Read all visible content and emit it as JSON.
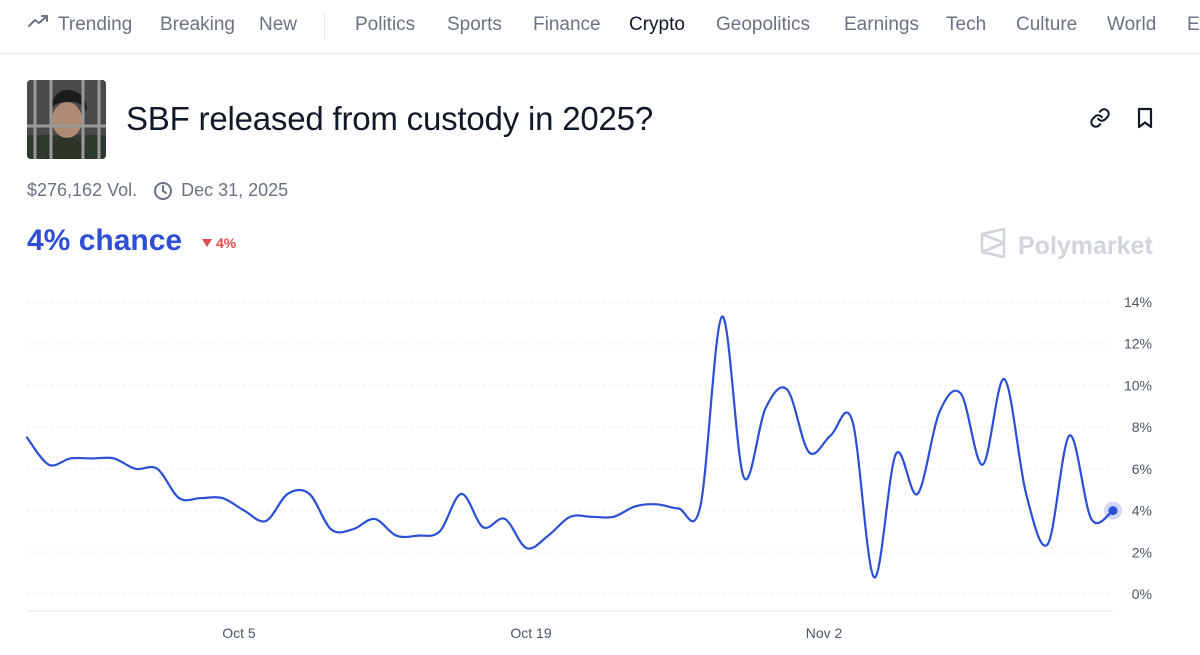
{
  "nav": {
    "primary": [
      {
        "label": "Trending",
        "icon": "trending-up-icon"
      },
      {
        "label": "Breaking"
      },
      {
        "label": "New"
      }
    ],
    "categories": [
      "Politics",
      "Sports",
      "Finance",
      "Crypto",
      "Geopolitics",
      "Earnings",
      "Tech",
      "Culture",
      "World",
      "E"
    ],
    "active": "Crypto"
  },
  "market": {
    "title": "SBF released from custody in 2025?",
    "volume": "$276,162 Vol.",
    "end_date": "Dec 31, 2025",
    "chance": "4% chance",
    "delta": "4%",
    "brand": "Polymarket",
    "icons": [
      "link-icon",
      "bookmark-icon",
      "clock-icon",
      "down-triangle-icon",
      "polymarket-logo-icon"
    ]
  },
  "colors": {
    "accent": "#2f4ed6",
    "line": "#2b4fd6",
    "negative": "#e5484d",
    "muted": "#6b7280",
    "grid": "#e5e7eb"
  },
  "chart_data": {
    "type": "line",
    "ylim": [
      0,
      14
    ],
    "y_ticks": [
      "14%",
      "12%",
      "10%",
      "8%",
      "6%",
      "4%",
      "2%",
      "0%"
    ],
    "x_ticks": [
      "Oct 5",
      "Oct 19",
      "Nov 2"
    ],
    "grid": "dotted horizontal",
    "series": [
      {
        "x": [
          0,
          1,
          2,
          3,
          4,
          5,
          6,
          7,
          8,
          9,
          10,
          11,
          12,
          13,
          14,
          15,
          16,
          17,
          18,
          19,
          20,
          21,
          22,
          23,
          24,
          25,
          26,
          27,
          28,
          29,
          30,
          31,
          32,
          33,
          34,
          35,
          36,
          37,
          38,
          39,
          40,
          41,
          42,
          43,
          44,
          45,
          46,
          47,
          48,
          49,
          50
        ],
        "y": [
          7.5,
          6.2,
          6.5,
          6.5,
          6.5,
          6.0,
          6.0,
          4.6,
          4.6,
          4.6,
          4.0,
          3.5,
          4.8,
          4.8,
          3.1,
          3.1,
          3.6,
          2.8,
          2.8,
          3.0,
          4.8,
          3.2,
          3.6,
          2.2,
          2.8,
          3.7,
          3.7,
          3.7,
          4.2,
          4.3,
          4.1,
          4.2,
          13.3,
          5.6,
          8.9,
          9.8,
          6.8,
          7.6,
          8.3,
          0.8,
          6.7,
          4.8,
          8.7,
          9.6,
          6.2,
          10.3,
          4.8,
          2.4,
          7.6,
          3.6,
          4.0
        ]
      }
    ]
  }
}
